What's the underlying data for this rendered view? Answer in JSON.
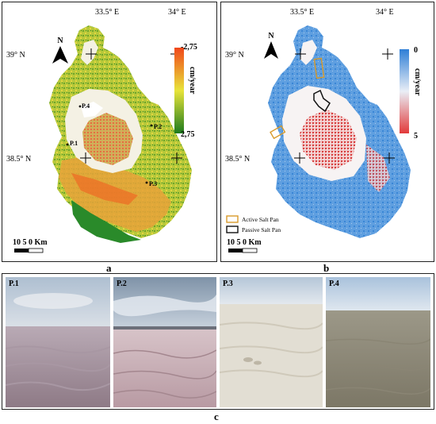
{
  "panel_a": {
    "letter": "a",
    "lon_left": "33.5° E",
    "lon_right": "34° E",
    "lat_top": "39° N",
    "lat_bottom": "38.5° N",
    "north": "N",
    "legend_top": "-2,75",
    "legend_bottom": "2,75",
    "legend_unit": "cm/year",
    "points": [
      "P.1",
      "P.2",
      "P.3",
      "P.4"
    ],
    "scale": {
      "label": "10 5 0 Km"
    },
    "colors": {
      "negative": "#f0471a",
      "mid": "#e8e43a",
      "positive": "#1d7a1d"
    }
  },
  "panel_b": {
    "letter": "b",
    "lon_left": "33.5° E",
    "lon_right": "34° E",
    "lat_top": "39° N",
    "lat_bottom": "38.5° N",
    "north": "N",
    "legend_top": "0",
    "legend_bottom": "5",
    "legend_unit": "cm/year",
    "scale": {
      "label": "10 5 0 Km"
    },
    "key": {
      "active": "Active Salt Pan",
      "passive": "Passive Salt Pan"
    },
    "colors": {
      "low": "#2f7fd6",
      "high": "#e23a3a",
      "active": "#d89a2a",
      "passive": "#111111"
    }
  },
  "panel_c": {
    "letter": "c",
    "photos": [
      {
        "label": "P.1"
      },
      {
        "label": "P.2"
      },
      {
        "label": "P.3"
      },
      {
        "label": "P.4"
      }
    ]
  }
}
